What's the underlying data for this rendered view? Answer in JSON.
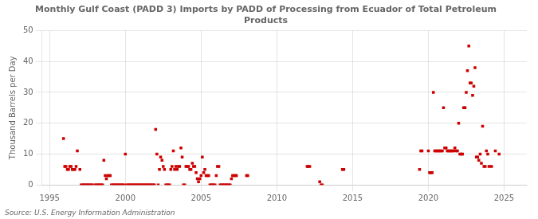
{
  "chart_data": {
    "type": "scatter",
    "title": "Monthly Gulf Coast (PADD 3) Imports by PADD of Processing from Ecuador of Total Petroleum\nProducts",
    "ylabel": "Thousand Barrels per Day",
    "source": "Source: U.S. Energy Information Administration",
    "color": "#cc0000",
    "marker": "square",
    "grid": true,
    "xlim": [
      1994.5,
      2026.5
    ],
    "ylim": [
      0,
      50
    ],
    "xticks": [
      1995,
      2000,
      2005,
      2010,
      2015,
      2020,
      2025
    ],
    "yticks": [
      0,
      10,
      20,
      30,
      40,
      50
    ],
    "x": [
      1995.92,
      1996.0,
      1996.08,
      1996.17,
      1996.25,
      1996.33,
      1996.42,
      1996.5,
      1996.58,
      1996.67,
      1996.75,
      1996.83,
      1997.0,
      1997.08,
      1997.17,
      1997.25,
      1997.33,
      1997.42,
      1997.5,
      1997.58,
      1997.67,
      1997.75,
      1997.83,
      1998.0,
      1998.08,
      1998.17,
      1998.25,
      1998.33,
      1998.42,
      1998.5,
      1998.58,
      1998.67,
      1998.75,
      1998.83,
      1998.92,
      1999.0,
      1999.08,
      1999.17,
      1999.25,
      1999.33,
      1999.42,
      1999.5,
      1999.58,
      1999.67,
      1999.75,
      1999.83,
      1999.92,
      2000.0,
      2000.08,
      2000.17,
      2000.25,
      2000.33,
      2000.42,
      2000.5,
      2000.58,
      2000.67,
      2000.75,
      2000.83,
      2000.92,
      2001.0,
      2001.08,
      2001.17,
      2001.25,
      2001.33,
      2001.42,
      2001.5,
      2001.58,
      2001.67,
      2001.75,
      2001.83,
      2001.92,
      2002.0,
      2002.08,
      2002.17,
      2002.25,
      2002.33,
      2002.42,
      2002.5,
      2002.58,
      2002.67,
      2002.75,
      2002.83,
      2002.92,
      2003.0,
      2003.08,
      2003.17,
      2003.25,
      2003.33,
      2003.42,
      2003.5,
      2003.58,
      2003.67,
      2003.75,
      2003.83,
      2003.92,
      2004.0,
      2004.08,
      2004.17,
      2004.25,
      2004.33,
      2004.42,
      2004.5,
      2004.58,
      2004.67,
      2004.75,
      2004.83,
      2004.92,
      2005.0,
      2005.08,
      2005.17,
      2005.25,
      2005.33,
      2005.42,
      2005.5,
      2005.58,
      2005.67,
      2005.75,
      2005.83,
      2005.92,
      2006.0,
      2006.08,
      2006.17,
      2006.25,
      2006.33,
      2006.42,
      2006.5,
      2006.58,
      2006.67,
      2006.75,
      2006.83,
      2006.92,
      2007.0,
      2007.08,
      2007.17,
      2007.25,
      2007.33,
      2008.0,
      2008.08,
      2012.0,
      2012.08,
      2012.17,
      2012.83,
      2012.92,
      2013.0,
      2014.33,
      2014.42,
      2019.42,
      2019.5,
      2019.58,
      2020.0,
      2020.08,
      2020.17,
      2020.25,
      2020.33,
      2020.42,
      2020.5,
      2020.58,
      2020.67,
      2020.75,
      2020.83,
      2020.92,
      2021.0,
      2021.08,
      2021.17,
      2021.25,
      2021.33,
      2021.42,
      2021.5,
      2021.58,
      2021.67,
      2021.75,
      2021.83,
      2021.92,
      2022.0,
      2022.08,
      2022.17,
      2022.25,
      2022.33,
      2022.42,
      2022.5,
      2022.58,
      2022.67,
      2022.75,
      2022.83,
      2022.92,
      2023.0,
      2023.08,
      2023.17,
      2023.25,
      2023.33,
      2023.42,
      2023.5,
      2023.58,
      2023.67,
      2023.75,
      2023.83,
      2023.92,
      2024.0,
      2024.17,
      2024.42,
      2024.67
    ],
    "values": [
      15,
      6,
      6,
      5,
      5,
      6,
      6,
      5,
      5,
      5,
      6,
      11,
      5,
      0,
      0,
      0,
      0,
      0,
      0,
      0,
      0,
      0,
      0,
      0,
      0,
      0,
      0,
      0,
      0,
      0,
      8,
      3,
      2,
      3,
      3,
      3,
      0,
      0,
      0,
      0,
      0,
      0,
      0,
      0,
      0,
      0,
      0,
      10,
      0,
      0,
      0,
      0,
      0,
      0,
      0,
      0,
      0,
      0,
      0,
      0,
      0,
      0,
      0,
      0,
      0,
      0,
      0,
      0,
      0,
      0,
      0,
      18,
      10,
      0,
      5,
      9,
      8,
      6,
      5,
      0,
      0,
      0,
      0,
      5,
      6,
      11,
      5,
      6,
      5,
      6,
      6,
      12,
      9,
      0,
      0,
      6,
      6,
      6,
      5,
      5,
      7,
      6,
      6,
      4,
      2,
      1,
      2,
      3,
      9,
      4,
      5,
      3,
      3,
      3,
      0,
      0,
      0,
      0,
      0,
      3,
      6,
      6,
      0,
      0,
      0,
      0,
      0,
      0,
      0,
      0,
      0,
      2,
      3,
      3,
      3,
      3,
      3,
      3,
      6,
      6,
      6,
      1,
      0,
      0,
      5,
      5,
      5,
      11,
      11,
      11,
      4,
      4,
      4,
      30,
      11,
      11,
      11,
      11,
      11,
      11,
      11,
      25,
      12,
      12,
      11,
      11,
      11,
      11,
      11,
      11,
      12,
      11,
      11,
      20,
      10,
      10,
      10,
      25,
      25,
      30,
      37,
      45,
      33,
      33,
      29,
      32,
      38,
      9,
      9,
      8,
      10,
      7,
      19,
      6,
      6,
      11,
      10,
      6,
      6,
      11,
      10
    ]
  }
}
